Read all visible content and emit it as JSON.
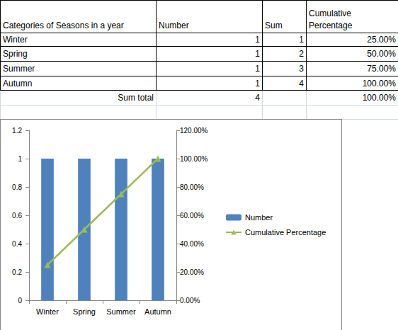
{
  "table": {
    "header": [
      "Categories of Seasons in a year",
      "Number",
      "Sum",
      "Cumulative Percentage"
    ],
    "rows": [
      [
        "Winter",
        "1",
        "1",
        "25.00%"
      ],
      [
        "Spring",
        "1",
        "2",
        "50.00%"
      ],
      [
        "Summer",
        "1",
        "3",
        "75.00%"
      ],
      [
        "Autumn",
        "1",
        "4",
        "100.00%"
      ]
    ],
    "total": {
      "label": "Sum total",
      "number": "4",
      "cumulative_percentage": "100.00%"
    }
  },
  "chart_data": {
    "type": "bar",
    "categories": [
      "Winter",
      "Spring",
      "Summer",
      "Autumn"
    ],
    "series": [
      {
        "name": "Number",
        "type": "bar",
        "color": "#4f81bd",
        "values": [
          1,
          1,
          1,
          1
        ]
      },
      {
        "name": "Cumulative Percentage",
        "type": "line",
        "color": "#9bbb59",
        "marker": "triangle",
        "axis": "y2",
        "values": [
          25,
          50,
          75,
          100
        ]
      }
    ],
    "ylim": [
      0,
      1.2
    ],
    "yticks": [
      0,
      0.2,
      0.4,
      0.6,
      0.8,
      1,
      1.2
    ],
    "y2lim": [
      0,
      120
    ],
    "y2ticks": [
      {
        "value": 0,
        "label": "0.00%"
      },
      {
        "value": 20,
        "label": "20.00%"
      },
      {
        "value": 40,
        "label": "40.00%"
      },
      {
        "value": 60,
        "label": "60.00%"
      },
      {
        "value": 80,
        "label": "80.00%"
      },
      {
        "value": 100,
        "label": "100.00%"
      },
      {
        "value": 120,
        "label": "120.00%"
      }
    ],
    "legend": "right",
    "grid": false
  }
}
